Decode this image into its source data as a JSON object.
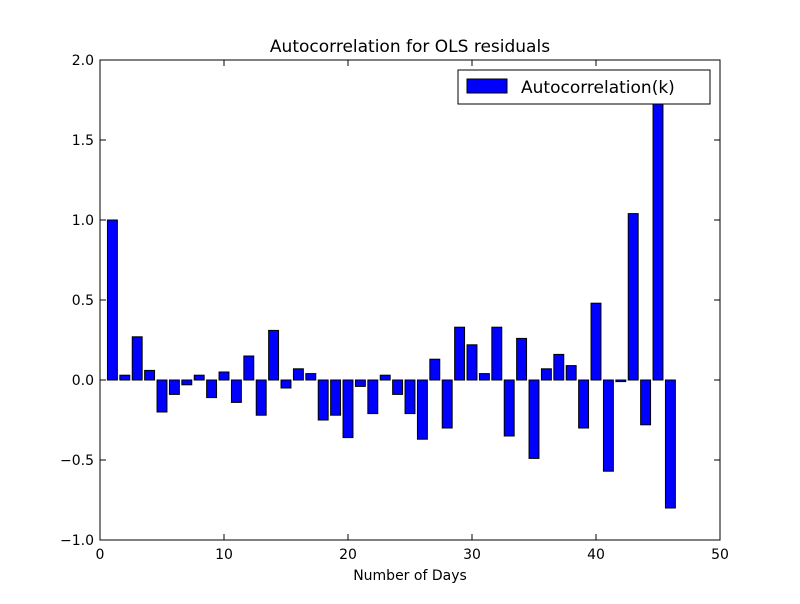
{
  "chart_data": {
    "type": "bar",
    "title": "Autocorrelation for OLS residuals",
    "xlabel": "Number of Days",
    "ylabel": "",
    "xlim": [
      0,
      50
    ],
    "ylim": [
      -1.0,
      2.0
    ],
    "xticks": [
      0,
      10,
      20,
      30,
      40,
      50
    ],
    "xtick_labels": [
      "0",
      "10",
      "20",
      "30",
      "40",
      "50"
    ],
    "yticks": [
      -1.0,
      -0.5,
      0.0,
      0.5,
      1.0,
      1.5,
      2.0
    ],
    "ytick_labels": [
      "−1.0",
      "−0.5",
      "0.0",
      "0.5",
      "1.0",
      "1.5",
      "2.0"
    ],
    "bar_width": 0.8,
    "grid": false,
    "legend_placement": "top-right",
    "bar_color": "#0000ff",
    "series": [
      {
        "name": "Autocorrelation(k)",
        "x": [
          1,
          2,
          3,
          4,
          5,
          6,
          7,
          8,
          9,
          10,
          11,
          12,
          13,
          14,
          15,
          16,
          17,
          18,
          19,
          20,
          21,
          22,
          23,
          24,
          25,
          26,
          27,
          28,
          29,
          30,
          31,
          32,
          33,
          34,
          35,
          36,
          37,
          38,
          39,
          40,
          41,
          42,
          43,
          44,
          45,
          46
        ],
        "values": [
          1.0,
          0.03,
          0.27,
          0.06,
          -0.2,
          -0.09,
          -0.03,
          0.03,
          -0.11,
          0.05,
          -0.14,
          0.15,
          -0.22,
          0.31,
          -0.05,
          0.07,
          0.04,
          -0.25,
          -0.22,
          -0.36,
          -0.04,
          -0.21,
          0.03,
          -0.09,
          -0.21,
          -0.37,
          0.13,
          -0.3,
          0.33,
          0.22,
          0.04,
          0.33,
          -0.35,
          0.26,
          -0.49,
          0.07,
          0.16,
          0.09,
          -0.3,
          0.48,
          -0.57,
          -0.01,
          1.04,
          -0.28,
          1.73,
          -0.8
        ]
      }
    ]
  }
}
